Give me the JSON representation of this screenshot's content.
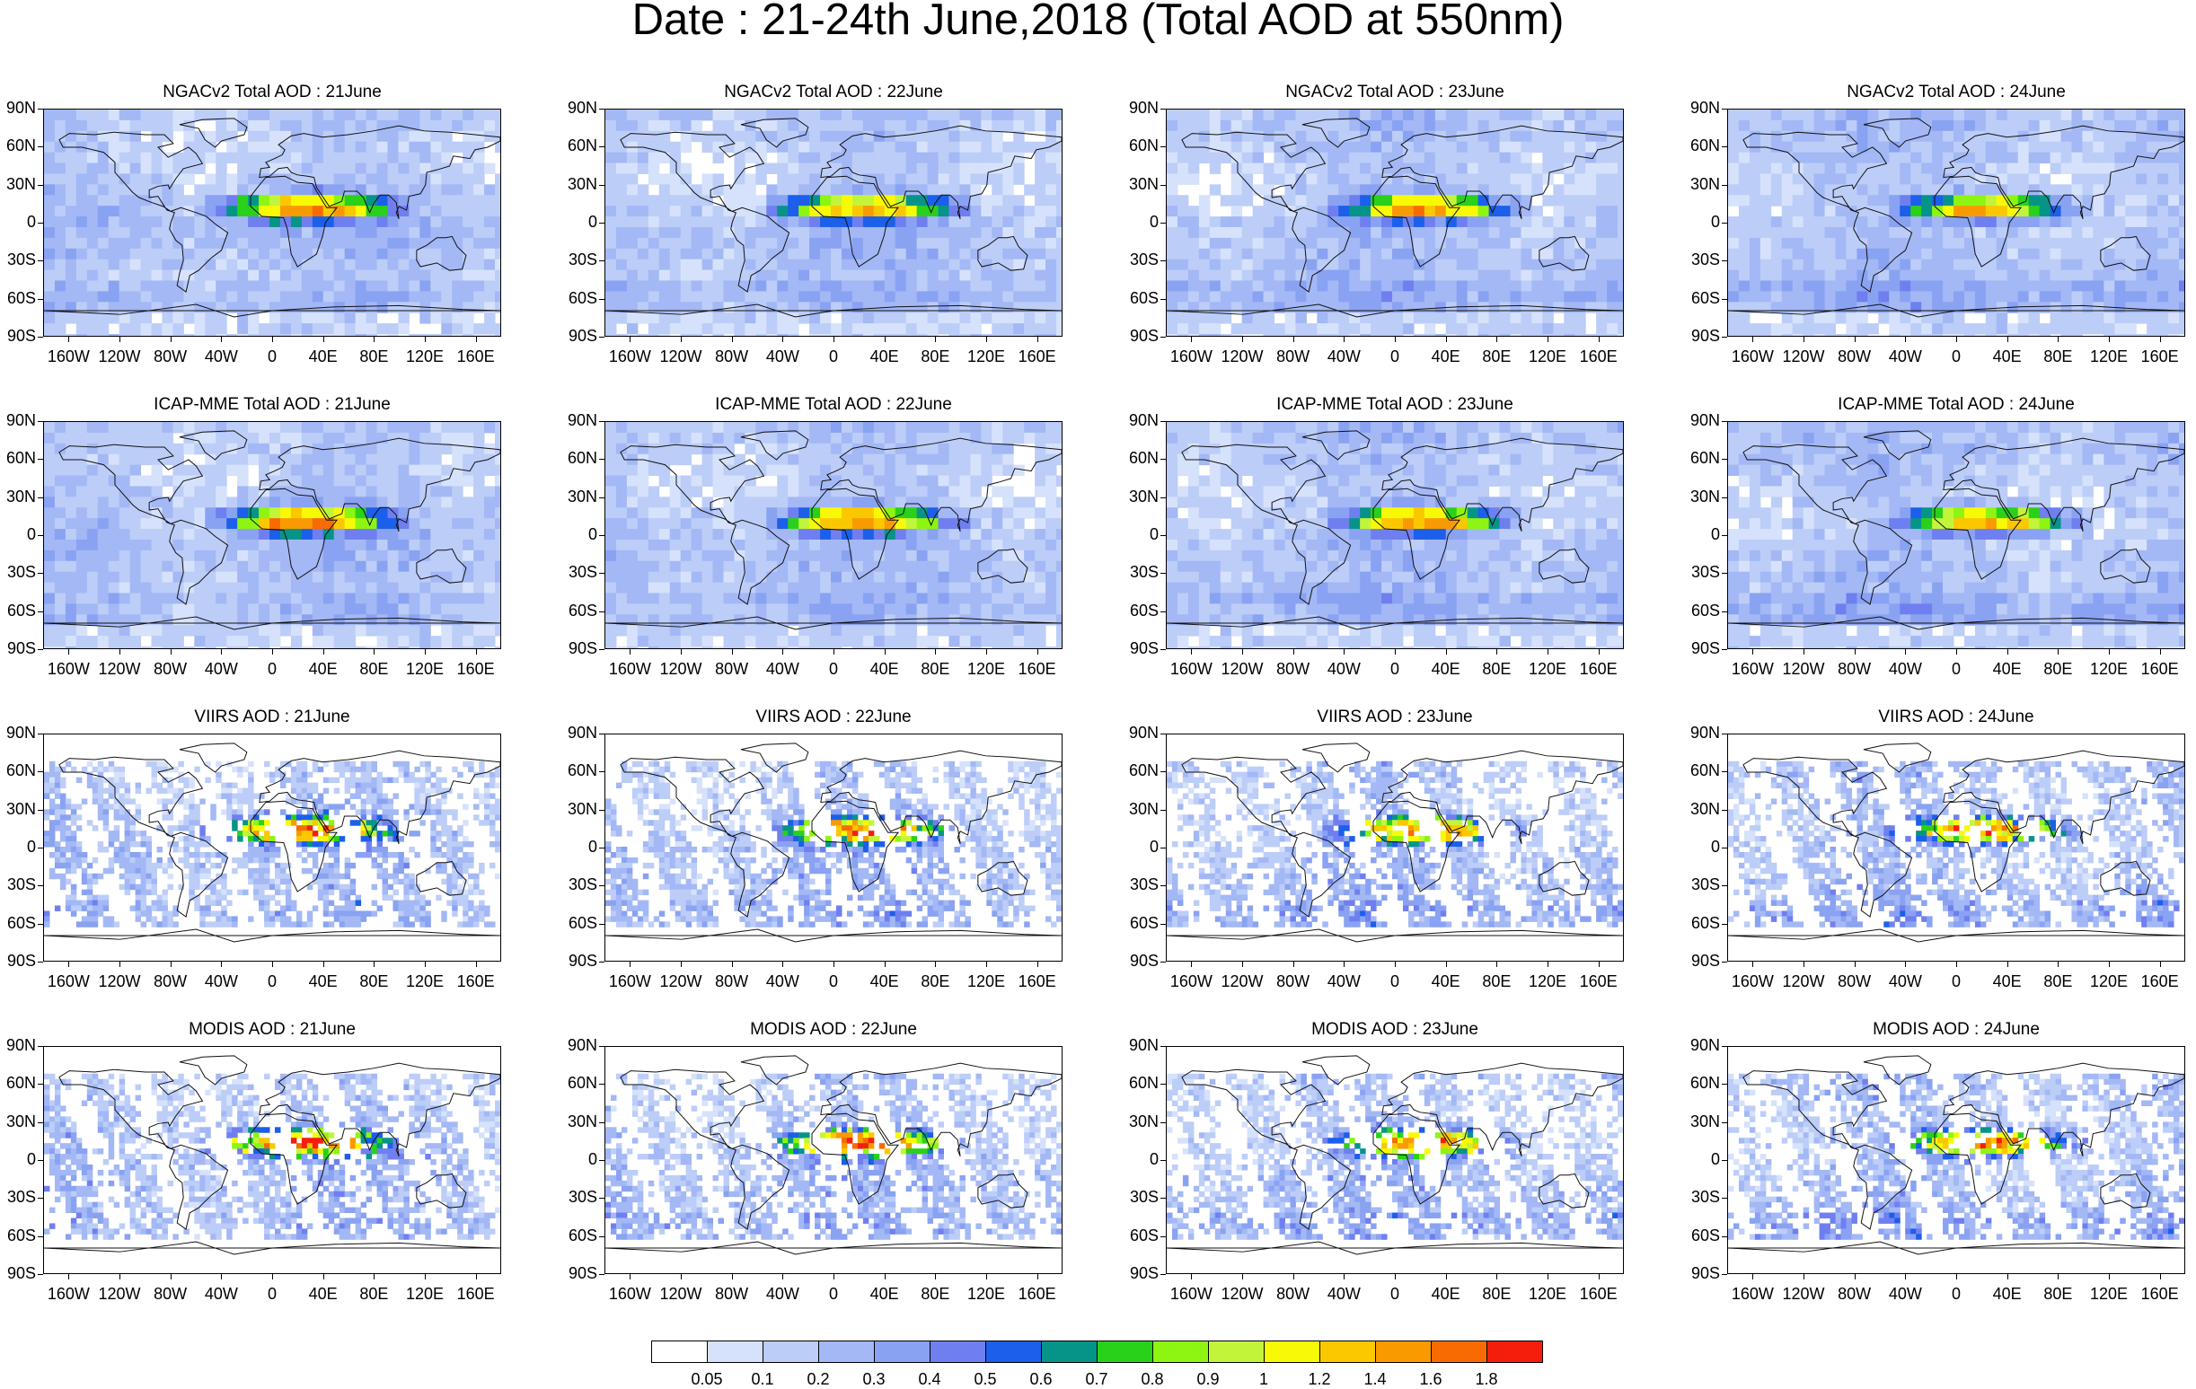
{
  "title": "Date : 21-24th June,2018 (Total AOD at 550nm)",
  "lat_labels": [
    "90N",
    "60N",
    "30N",
    "0",
    "30S",
    "60S",
    "90S"
  ],
  "lon_labels": [
    "160W",
    "120W",
    "80W",
    "40W",
    "0",
    "40E",
    "80E",
    "120E",
    "160E"
  ],
  "rows": [
    {
      "dataset": "NGACv2 Total AOD",
      "kind": "model",
      "titles": [
        "NGACv2 Total AOD : 21June",
        "NGACv2 Total AOD : 22June",
        "NGACv2 Total AOD : 23June",
        "NGACv2 Total AOD : 24June"
      ]
    },
    {
      "dataset": "ICAP-MME Total AOD",
      "kind": "model",
      "titles": [
        "ICAP-MME Total AOD : 21June",
        "ICAP-MME Total AOD : 22June",
        "ICAP-MME Total AOD : 23June",
        "ICAP-MME Total AOD : 24June"
      ]
    },
    {
      "dataset": "VIIRS AOD",
      "kind": "satellite",
      "titles": [
        "VIIRS AOD : 21June",
        "VIIRS AOD : 22June",
        "VIIRS AOD : 23June",
        "VIIRS AOD : 24June"
      ]
    },
    {
      "dataset": "MODIS AOD",
      "kind": "satellite",
      "titles": [
        "MODIS AOD : 21June",
        "MODIS AOD : 22June",
        "MODIS AOD : 23June",
        "MODIS AOD : 24June"
      ]
    }
  ],
  "colorbar": {
    "labels": [
      "0.05",
      "0.1",
      "0.2",
      "0.3",
      "0.4",
      "0.5",
      "0.6",
      "0.7",
      "0.8",
      "0.9",
      "1",
      "1.2",
      "1.4",
      "1.6",
      "1.8"
    ],
    "colors": [
      "#ffffff",
      "#d6e2fb",
      "#bccdf8",
      "#a3b8f5",
      "#8aa2f2",
      "#6f7ff0",
      "#1b5fea",
      "#069488",
      "#29d11b",
      "#8df511",
      "#c2f53a",
      "#f8fa05",
      "#fbc800",
      "#f99b00",
      "#f76b00",
      "#f51e0c"
    ]
  }
}
